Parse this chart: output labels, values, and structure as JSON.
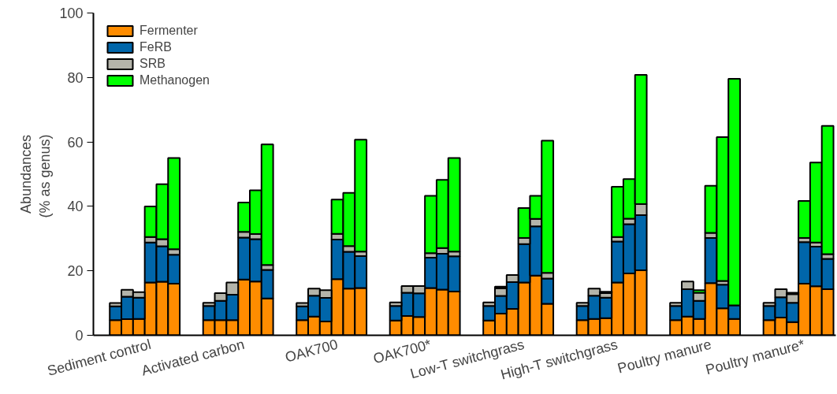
{
  "chart_data": {
    "type": "bar",
    "stacked": true,
    "ylabel": "Abundances\n(%  as genus)",
    "categories": [
      null,
      null,
      null,
      "Sediment control",
      null,
      null,
      null,
      null,
      null,
      null,
      null,
      "Activated carbon",
      null,
      null,
      null,
      null,
      null,
      null,
      null,
      "OAK700",
      null,
      null,
      null,
      null,
      null,
      null,
      null,
      "OAK700*",
      null,
      null,
      null,
      null,
      null,
      null,
      null,
      "Low-T switchgrass",
      null,
      null,
      null,
      null,
      null,
      null,
      null,
      "High-T switchgrass",
      null,
      null,
      null,
      null,
      null,
      null,
      null,
      "Poultry manure",
      null,
      null,
      null,
      null,
      null,
      null,
      null,
      "Poultry manure*",
      null,
      null
    ],
    "series": [
      {
        "name": "Fermenter",
        "color": "#ff8c00",
        "values": [
          4.7,
          5.0,
          5.1,
          16.4,
          16.6,
          16.0,
          null,
          null,
          4.7,
          4.7,
          4.7,
          17.3,
          16.7,
          11.4,
          null,
          null,
          4.7,
          5.8,
          4.3,
          17.4,
          14.5,
          14.7,
          null,
          null,
          4.6,
          6.0,
          5.7,
          14.7,
          14.2,
          13.6,
          null,
          null,
          4.6,
          6.7,
          8.2,
          16.4,
          18.5,
          9.8,
          null,
          null,
          4.7,
          5.1,
          5.3,
          16.4,
          19.2,
          20.2,
          null,
          null,
          4.7,
          5.8,
          5.1,
          16.2,
          8.4,
          5.1,
          null,
          null,
          4.7,
          5.5,
          4.1,
          16.0,
          15.2,
          14.3
        ]
      },
      {
        "name": "FeRB",
        "color": "#0066aa",
        "values": [
          4.3,
          7.0,
          6.6,
          12.4,
          11.0,
          9.0,
          null,
          null,
          4.4,
          6.0,
          7.9,
          13.0,
          13.1,
          8.9,
          null,
          null,
          4.3,
          6.5,
          7.3,
          12.3,
          11.4,
          9.9,
          null,
          null,
          4.5,
          7.2,
          7.3,
          9.4,
          11.1,
          10.9,
          null,
          null,
          4.5,
          5.5,
          8.3,
          11.9,
          15.3,
          7.8,
          null,
          null,
          4.4,
          7.2,
          6.4,
          12.7,
          15.3,
          17.1,
          null,
          null,
          4.4,
          8.5,
          5.6,
          14.0,
          7.3,
          4.2,
          null,
          null,
          4.4,
          6.3,
          6.0,
          12.9,
          12.3,
          9.4
        ]
      },
      {
        "name": "SRB",
        "color": "#b4b4aa",
        "values": [
          1.0,
          2.1,
          1.7,
          1.7,
          2.2,
          1.7,
          null,
          null,
          1.0,
          2.4,
          3.8,
          1.8,
          1.6,
          1.5,
          null,
          null,
          1.0,
          2.2,
          2.4,
          1.8,
          1.8,
          1.4,
          null,
          null,
          1.1,
          2.1,
          2.3,
          1.4,
          1.8,
          1.5,
          null,
          null,
          1.1,
          2.4,
          2.2,
          1.9,
          2.3,
          1.8,
          null,
          null,
          1.0,
          2.2,
          1.4,
          1.4,
          1.7,
          3.4,
          null,
          null,
          1.0,
          2.4,
          2.5,
          1.6,
          1.2,
          null,
          null,
          null,
          1.0,
          2.5,
          2.7,
          1.3,
          1.3,
          1.5
        ]
      },
      {
        "name": "Methanogen",
        "color": "#00ff00",
        "values": [
          null,
          null,
          null,
          9.5,
          17.1,
          28.3,
          null,
          null,
          null,
          null,
          null,
          9.1,
          13.6,
          37.4,
          null,
          null,
          null,
          null,
          null,
          10.6,
          16.5,
          34.7,
          null,
          null,
          null,
          null,
          null,
          17.8,
          21.1,
          29.0,
          null,
          null,
          null,
          0.5,
          null,
          9.3,
          7.2,
          41.0,
          null,
          null,
          null,
          null,
          0.4,
          15.6,
          12.3,
          40.1,
          null,
          null,
          null,
          null,
          0.8,
          14.6,
          44.6,
          70.3,
          null,
          null,
          null,
          null,
          0.4,
          11.5,
          24.8,
          39.8
        ]
      }
    ],
    "ylim": [
      0,
      100
    ],
    "yticks": [
      0,
      20,
      40,
      60,
      80,
      100
    ],
    "grid": false,
    "legend": "top left"
  }
}
